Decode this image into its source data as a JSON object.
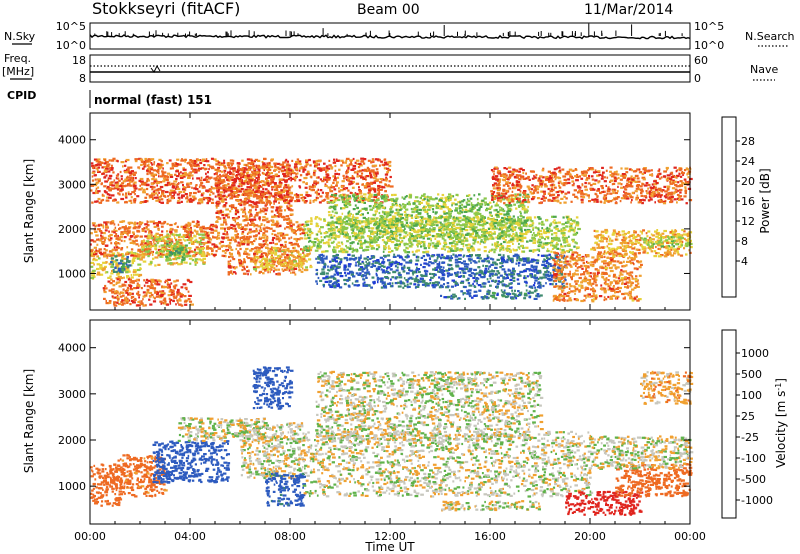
{
  "header": {
    "station": "Stokkseyri (fitACF)",
    "beam": "Beam 00",
    "date": "11/Mar/2014"
  },
  "strip_labels": {
    "nsky": "N.Sky",
    "nsky_hi": "10^5",
    "nsky_lo": "10^0",
    "nsearch": "N.Search",
    "nsearch_hi": "10^5",
    "nsearch_lo": "10^0",
    "freq_line1": "Freq.",
    "freq_line2": "[MHz]",
    "freq_hi": "18",
    "freq_lo": "8",
    "nave": "Nave",
    "nave_hi": "60",
    "nave_lo": "0",
    "cpid": "CPID",
    "cpid_value": "normal (fast) 151"
  },
  "colors": {
    "power_scale": [
      "#1f3bd6",
      "#2d5bbf",
      "#3e8a6e",
      "#4ea84c",
      "#8cc84a",
      "#e6d23a",
      "#f0a030",
      "#ee6a22",
      "#e0251e"
    ],
    "velocity_scale": [
      "#1f3bd6",
      "#2d5bbf",
      "#3e8a6e",
      "#5fb24a",
      "#c7c7be",
      "#c7c7be",
      "#f0a030",
      "#ee6a22",
      "#e0251e"
    ],
    "grey": "#c7c7be"
  },
  "chart_data": [
    {
      "type": "heatmap",
      "title": "Power",
      "xlabel": "",
      "ylabel": "Slant Range [km]",
      "x_ticks": [
        "00:00",
        "04:00",
        "08:00",
        "12:00",
        "16:00",
        "20:00",
        "00:00"
      ],
      "xlim_hours": [
        0,
        24
      ],
      "y_ticks": [
        "1000",
        "2000",
        "3000",
        "4000"
      ],
      "ylim": [
        180,
        4600
      ],
      "colorbar": {
        "label": "Power [dB]",
        "ticks": [
          "28",
          "24",
          "20",
          "16",
          "12",
          "8",
          "4"
        ],
        "range": [
          0,
          32
        ]
      },
      "regions": [
        {
          "t0": 0.0,
          "t1": 2.0,
          "r0": 900,
          "r1": 1500,
          "level": 12
        },
        {
          "t0": 0.8,
          "t1": 1.6,
          "r0": 1050,
          "r1": 1450,
          "level": 24
        },
        {
          "t0": 0.0,
          "t1": 5.5,
          "r0": 1400,
          "r1": 2200,
          "level": 6
        },
        {
          "t0": 2.0,
          "t1": 4.5,
          "r0": 1200,
          "r1": 1900,
          "level": 13
        },
        {
          "t0": 3.0,
          "t1": 3.8,
          "r0": 1300,
          "r1": 1700,
          "level": 19
        },
        {
          "t0": 0.5,
          "t1": 4.0,
          "r0": 300,
          "r1": 900,
          "level": 5
        },
        {
          "t0": 5.5,
          "t1": 8.5,
          "r0": 1000,
          "r1": 2200,
          "level": 6
        },
        {
          "t0": 6.5,
          "t1": 8.8,
          "r0": 1100,
          "r1": 1600,
          "level": 11
        },
        {
          "t0": 0.0,
          "t1": 12.0,
          "r0": 2600,
          "r1": 3600,
          "level": 5
        },
        {
          "t0": 5.0,
          "t1": 8.0,
          "r0": 2200,
          "r1": 3500,
          "level": 5
        },
        {
          "t0": 8.5,
          "t1": 19.5,
          "r0": 1500,
          "r1": 2300,
          "level": 15
        },
        {
          "t0": 9.0,
          "t1": 19.0,
          "r0": 700,
          "r1": 1450,
          "level": 26
        },
        {
          "t0": 9.5,
          "t1": 17.5,
          "r0": 1800,
          "r1": 2800,
          "level": 16
        },
        {
          "t0": 14.0,
          "t1": 18.0,
          "r0": 450,
          "r1": 650,
          "level": 25
        },
        {
          "t0": 16.0,
          "t1": 24.0,
          "r0": 2600,
          "r1": 3400,
          "level": 5
        },
        {
          "t0": 18.5,
          "t1": 22.0,
          "r0": 400,
          "r1": 1500,
          "level": 7
        },
        {
          "t0": 20.0,
          "t1": 24.0,
          "r0": 1400,
          "r1": 2000,
          "level": 10
        },
        {
          "t0": 22.0,
          "t1": 24.0,
          "r0": 1600,
          "r1": 1850,
          "level": 15
        }
      ]
    },
    {
      "type": "heatmap",
      "title": "Velocity",
      "xlabel": "Time UT",
      "ylabel": "Slant Range [km]",
      "x_ticks": [
        "00:00",
        "04:00",
        "08:00",
        "12:00",
        "16:00",
        "20:00",
        "00:00"
      ],
      "xlim_hours": [
        0,
        24
      ],
      "y_ticks": [
        "1000",
        "2000",
        "3000",
        "4000"
      ],
      "ylim": [
        180,
        4600
      ],
      "colorbar": {
        "label": "Velocity [m s^-1]",
        "ticks": [
          "1000",
          "500",
          "100",
          "25",
          "-25",
          "-100",
          "-500",
          "-1000"
        ],
        "range": [
          -1000,
          1000
        ]
      },
      "regions": [
        {
          "t0": 0.0,
          "t1": 1.2,
          "r0": 600,
          "r1": 1500,
          "level": -400
        },
        {
          "t0": 1.0,
          "t1": 3.0,
          "r0": 800,
          "r1": 1700,
          "level": -150
        },
        {
          "t0": 2.5,
          "t1": 5.5,
          "r0": 1100,
          "r1": 2000,
          "level": 200
        },
        {
          "t0": 3.5,
          "t1": 7.0,
          "r0": 2000,
          "r1": 2500,
          "level": 0
        },
        {
          "t0": 6.0,
          "t1": 8.5,
          "r0": 1200,
          "r1": 2400,
          "level": 0
        },
        {
          "t0": 7.0,
          "t1": 8.5,
          "r0": 600,
          "r1": 1300,
          "level": 150
        },
        {
          "t0": 6.5,
          "t1": 8.0,
          "r0": 2700,
          "r1": 3600,
          "level": 300
        },
        {
          "t0": 8.5,
          "t1": 20.0,
          "r0": 800,
          "r1": 2200,
          "level": 0
        },
        {
          "t0": 9.0,
          "t1": 18.0,
          "r0": 2000,
          "r1": 3500,
          "level": 0
        },
        {
          "t0": 14.0,
          "t1": 18.0,
          "r0": 500,
          "r1": 700,
          "level": 0
        },
        {
          "t0": 19.0,
          "t1": 22.0,
          "r0": 400,
          "r1": 900,
          "level": -700
        },
        {
          "t0": 21.0,
          "t1": 24.0,
          "r0": 800,
          "r1": 1500,
          "level": -200
        },
        {
          "t0": 20.0,
          "t1": 24.0,
          "r0": 1400,
          "r1": 2100,
          "level": 0
        },
        {
          "t0": 22.0,
          "t1": 24.0,
          "r0": 2800,
          "r1": 3500,
          "level": -60
        }
      ]
    }
  ]
}
